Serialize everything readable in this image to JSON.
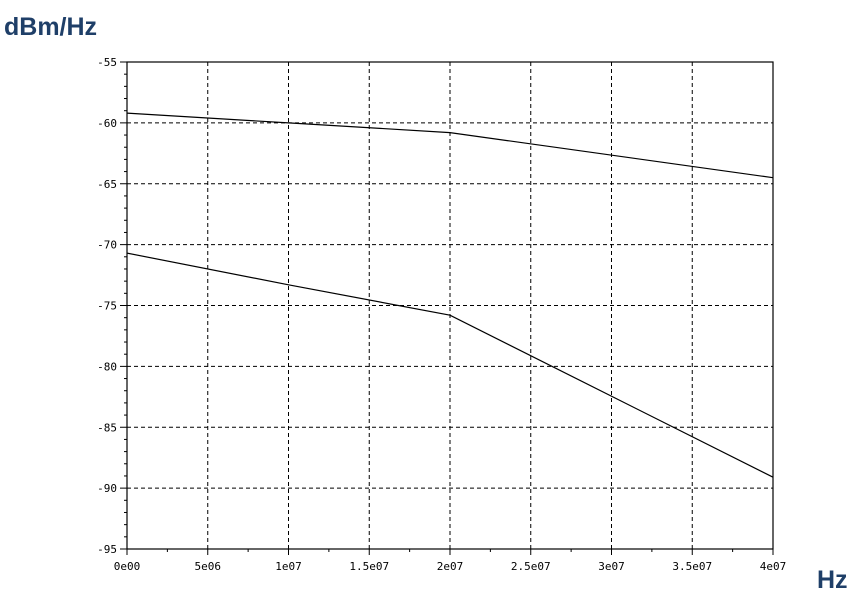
{
  "chart_data": {
    "type": "line",
    "ylabel": "dBm/Hz",
    "xlabel": "Hz",
    "x_ticks": [
      0,
      5000000,
      10000000,
      15000000,
      20000000,
      25000000,
      30000000,
      35000000,
      40000000
    ],
    "x_tick_labels": [
      "0e00",
      "5e06",
      "1e07",
      "1.5e07",
      "2e07",
      "2.5e07",
      "3e07",
      "3.5e07",
      "4e07"
    ],
    "y_ticks": [
      -55,
      -60,
      -65,
      -70,
      -75,
      -80,
      -85,
      -90,
      -95
    ],
    "y_tick_labels": [
      "-55",
      "-60",
      "-65",
      "-70",
      "-75",
      "-80",
      "-85",
      "-90",
      "-95"
    ],
    "xlim": [
      0,
      40000000
    ],
    "ylim": [
      -95,
      -55
    ],
    "grid": true,
    "series": [
      {
        "x": [
          0,
          10000000,
          20000000,
          40000000
        ],
        "values": [
          -59.2,
          -60.0,
          -60.8,
          -64.5
        ]
      },
      {
        "x": [
          0,
          10000000,
          20000000,
          40000000
        ],
        "values": [
          -70.7,
          -73.3,
          -75.8,
          -89.1
        ]
      }
    ],
    "colors": {
      "axis_title": "#1f3f68",
      "line": "#000000"
    }
  }
}
